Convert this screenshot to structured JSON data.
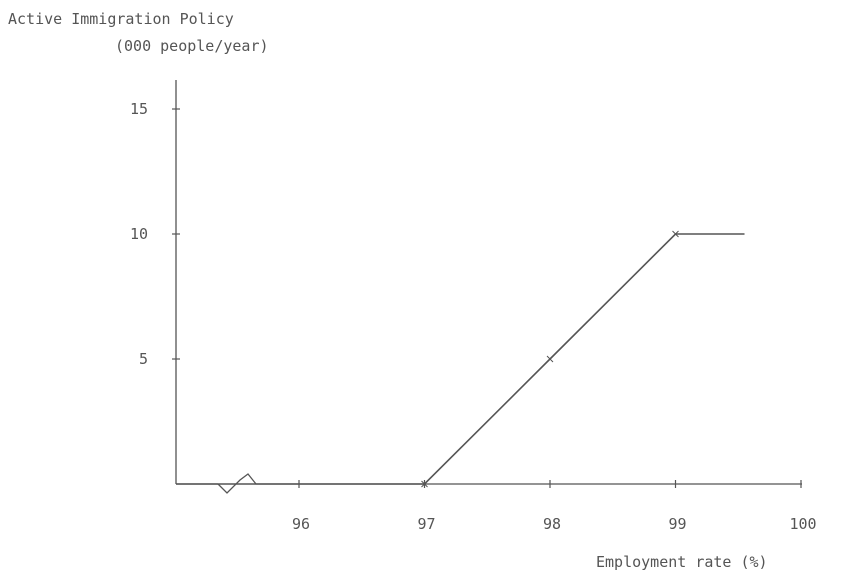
{
  "chart_data": {
    "type": "line",
    "title": "",
    "ylabel_line1": "Active Immigration Policy",
    "ylabel_line2": "(000 people/year)",
    "xlabel": "Employment rate (%)",
    "x_ticks": [
      96,
      97,
      98,
      99,
      100
    ],
    "y_ticks": [
      5,
      10,
      15
    ],
    "xlim": [
      95,
      100
    ],
    "ylim": [
      0,
      15
    ],
    "axis_break": "x-axis break between origin and 96",
    "grid": false,
    "series": [
      {
        "x": [
          95,
          97,
          98,
          99,
          99.55
        ],
        "y": [
          0,
          0,
          5,
          10,
          10
        ],
        "color": "#555555"
      }
    ]
  }
}
